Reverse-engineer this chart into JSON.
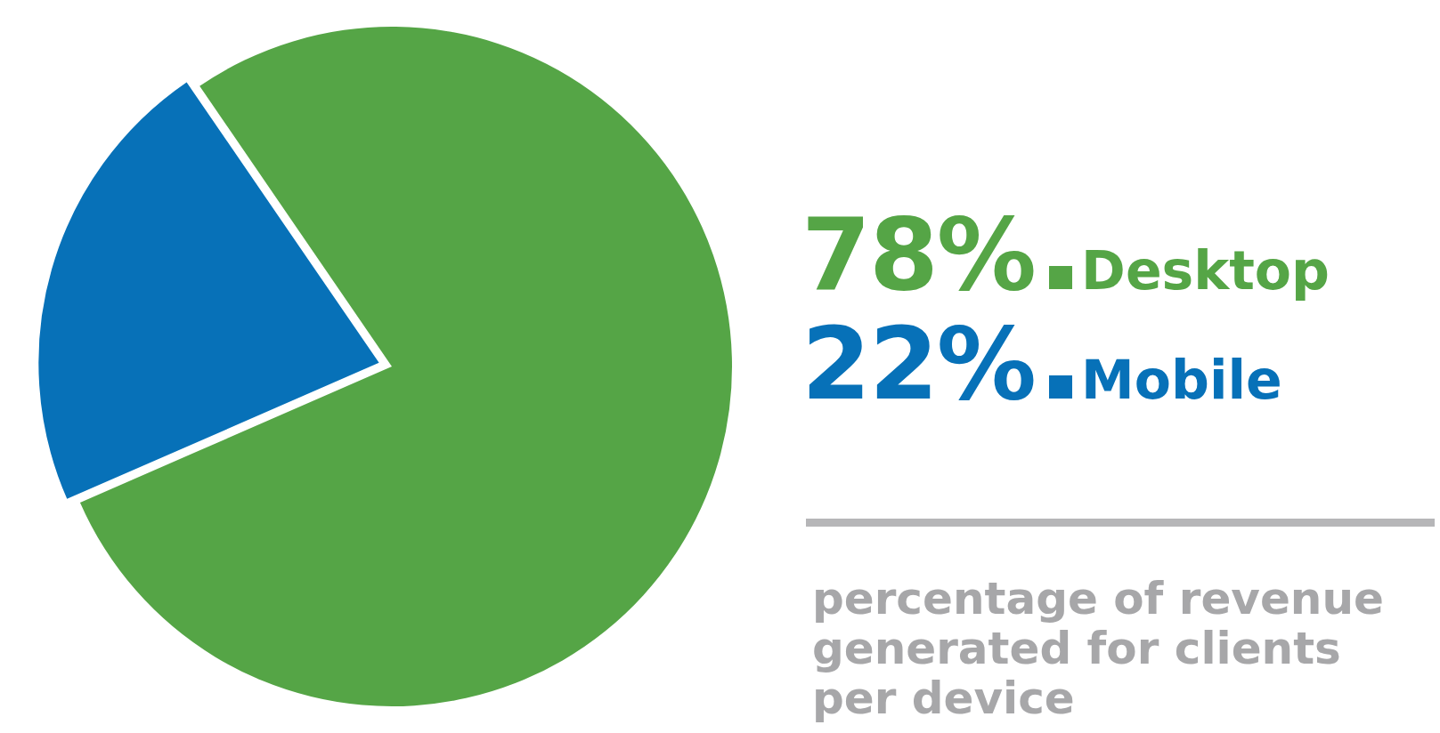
{
  "chart_data": {
    "type": "pie",
    "categories": [
      "Desktop",
      "Mobile"
    ],
    "values": [
      78,
      22
    ],
    "colors": [
      "#55a546",
      "#0771b8"
    ],
    "value_labels": [
      "78%",
      "22%"
    ],
    "legend": "right",
    "annotations": [
      "percentage of revenue generated for clients per device"
    ]
  }
}
